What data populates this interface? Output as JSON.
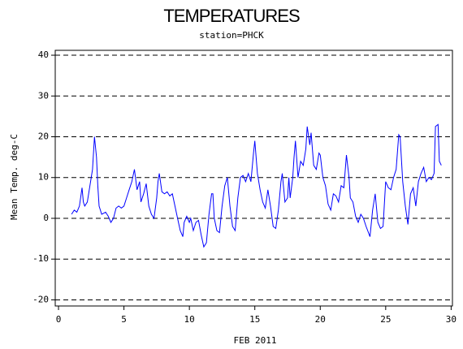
{
  "chart_data": {
    "type": "line",
    "title": "TEMPERATURES",
    "subtitle": "station=PHCK",
    "x_label": "FEB 2011",
    "y_label": "Mean Temp. deg-C",
    "x": [
      1.0,
      1.2,
      1.4,
      1.6,
      1.8,
      1.9,
      2.0,
      2.2,
      2.4,
      2.6,
      2.75,
      2.9,
      3.0,
      3.1,
      3.3,
      3.6,
      3.8,
      4.0,
      4.2,
      4.4,
      4.6,
      4.8,
      5.0,
      5.2,
      5.4,
      5.6,
      5.8,
      6.0,
      6.2,
      6.3,
      6.5,
      6.7,
      6.9,
      7.1,
      7.3,
      7.5,
      7.6,
      7.7,
      7.9,
      8.1,
      8.3,
      8.5,
      8.7,
      8.9,
      9.1,
      9.3,
      9.5,
      9.6,
      9.8,
      10.0,
      10.1,
      10.3,
      10.5,
      10.7,
      10.9,
      11.1,
      11.3,
      11.5,
      11.7,
      11.8,
      11.9,
      12.1,
      12.3,
      12.5,
      12.7,
      12.9,
      13.1,
      13.3,
      13.5,
      13.7,
      13.9,
      14.1,
      14.3,
      14.5,
      14.7,
      14.9,
      15.0,
      15.2,
      15.4,
      15.6,
      15.8,
      16.0,
      16.2,
      16.4,
      16.6,
      16.8,
      17.0,
      17.1,
      17.3,
      17.5,
      17.6,
      17.7,
      17.9,
      18.0,
      18.1,
      18.3,
      18.5,
      18.7,
      18.9,
      19.0,
      19.2,
      19.3,
      19.5,
      19.7,
      19.9,
      20.0,
      20.2,
      20.4,
      20.6,
      20.8,
      21.0,
      21.2,
      21.4,
      21.6,
      21.8,
      22.0,
      22.2,
      22.3,
      22.5,
      22.7,
      22.9,
      23.1,
      23.3,
      23.5,
      23.8,
      24.0,
      24.2,
      24.4,
      24.6,
      24.8,
      25.0,
      25.2,
      25.4,
      25.6,
      25.8,
      26.0,
      26.1,
      26.3,
      26.5,
      26.7,
      26.9,
      27.1,
      27.3,
      27.5,
      27.7,
      27.9,
      28.1,
      28.3,
      28.5,
      28.7,
      28.8,
      29.0,
      29.1,
      29.25
    ],
    "series": [
      {
        "name": "Mean Temp",
        "color": "#0000ff",
        "values": [
          1,
          2,
          1.5,
          3,
          7.5,
          4,
          3,
          4,
          8,
          12,
          20,
          15,
          8,
          3,
          1,
          1.5,
          0.5,
          -1,
          0,
          2.5,
          3,
          2.5,
          3,
          5,
          7,
          9,
          12,
          7,
          9,
          4,
          6,
          8.5,
          3,
          1,
          0,
          5,
          9,
          11,
          6.5,
          6,
          6.5,
          5.5,
          6,
          3,
          0,
          -3,
          -4.5,
          -1,
          0.5,
          -1,
          0,
          -3,
          -1,
          -0.5,
          -4,
          -7,
          -6,
          1,
          6,
          6,
          0,
          -3,
          -3.5,
          3,
          8,
          10,
          3,
          -2,
          -3,
          5,
          10,
          10.5,
          9,
          11,
          9,
          16,
          19,
          11,
          7,
          4,
          2.5,
          7,
          3,
          -2,
          -2.5,
          2,
          9,
          11,
          4,
          5,
          10,
          5,
          10,
          15,
          19,
          10,
          14,
          13,
          17,
          22.5,
          18,
          21,
          13,
          12,
          16,
          15.5,
          10,
          8,
          3.5,
          2,
          6,
          5.5,
          4,
          8,
          7.5,
          15.5,
          10,
          5,
          4,
          0.5,
          -1,
          1,
          0,
          -2,
          -4.5,
          2,
          6,
          -1,
          -2.5,
          -2,
          9,
          7.5,
          7,
          10,
          12,
          20.5,
          20,
          9,
          3,
          -1.5,
          6,
          7.5,
          3,
          9,
          11,
          12.5,
          9,
          10,
          9.5,
          11,
          22.5,
          23,
          14,
          13
        ]
      }
    ],
    "xlim": [
      -0.25,
      30.1
    ],
    "ylim": [
      -21.5,
      41.2
    ],
    "xticks": [
      0,
      5,
      10,
      15,
      20,
      25,
      30
    ],
    "yticks": [
      -20,
      -10,
      0,
      10,
      20,
      30,
      40
    ],
    "grid": true
  }
}
